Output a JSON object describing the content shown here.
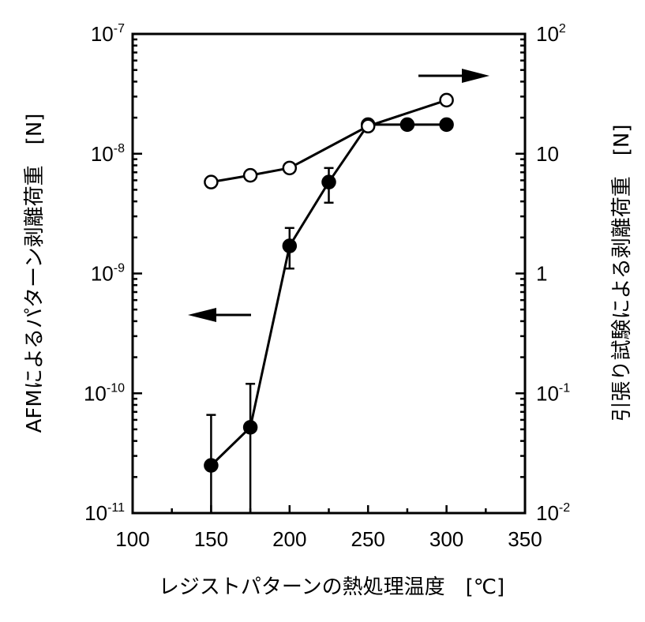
{
  "chart_data": {
    "type": "scatter",
    "x_axis": {
      "label": "レジストパターンの熱処理温度　[℃]",
      "range": [
        100,
        350
      ],
      "tick_labels": [
        "100",
        "150",
        "200",
        "250",
        "300",
        "350"
      ],
      "ticks": [
        100,
        150,
        200,
        250,
        300,
        350
      ],
      "minor_step": 25
    },
    "y_left": {
      "label": "AFMによるパターン剥離荷重　[N]",
      "scale": "log",
      "range": [
        1e-11,
        1e-07
      ],
      "tick_labels": [
        {
          "base": "10",
          "exp": "-7"
        },
        {
          "base": "10",
          "exp": "-8"
        },
        {
          "base": "10",
          "exp": "-9"
        },
        {
          "base": "10",
          "exp": "-10"
        },
        {
          "base": "10",
          "exp": "-11"
        }
      ]
    },
    "y_right": {
      "label": "引張り試験による剥離荷重　[N]",
      "scale": "log",
      "range": [
        0.01,
        100
      ],
      "tick_labels": [
        {
          "base": "10",
          "exp": "2"
        },
        {
          "base": "10",
          "exp": ""
        },
        {
          "base": "1",
          "exp": ""
        },
        {
          "base": "10",
          "exp": "-1"
        },
        {
          "base": "10",
          "exp": "-2"
        }
      ]
    },
    "grid": false,
    "series": [
      {
        "marker": "filled-circle",
        "axis": "left",
        "x": [
          150,
          175,
          200,
          225,
          250,
          275,
          300
        ],
        "y": [
          2.5e-11,
          5.2e-11,
          1.7e-09,
          5.8e-09,
          1.75e-08,
          1.75e-08,
          1.75e-08
        ],
        "error_upper": [
          6.6e-11,
          1.2e-10,
          2.4e-09,
          7.6e-09,
          null,
          null,
          null
        ],
        "error_lower": [
          1e-11,
          1e-11,
          1.1e-09,
          3.9e-09,
          null,
          null,
          null
        ]
      },
      {
        "marker": "open-circle",
        "axis": "right",
        "x": [
          150,
          175,
          200,
          250,
          300
        ],
        "y": [
          5.8,
          6.6,
          7.6,
          17,
          28
        ]
      }
    ],
    "annotations": [
      {
        "type": "arrow",
        "direction": "left",
        "meaning": "filled series uses left axis"
      },
      {
        "type": "arrow",
        "direction": "right",
        "meaning": "open series uses right axis"
      }
    ],
    "colors": {
      "ink": "#000000",
      "background": "#ffffff"
    }
  }
}
